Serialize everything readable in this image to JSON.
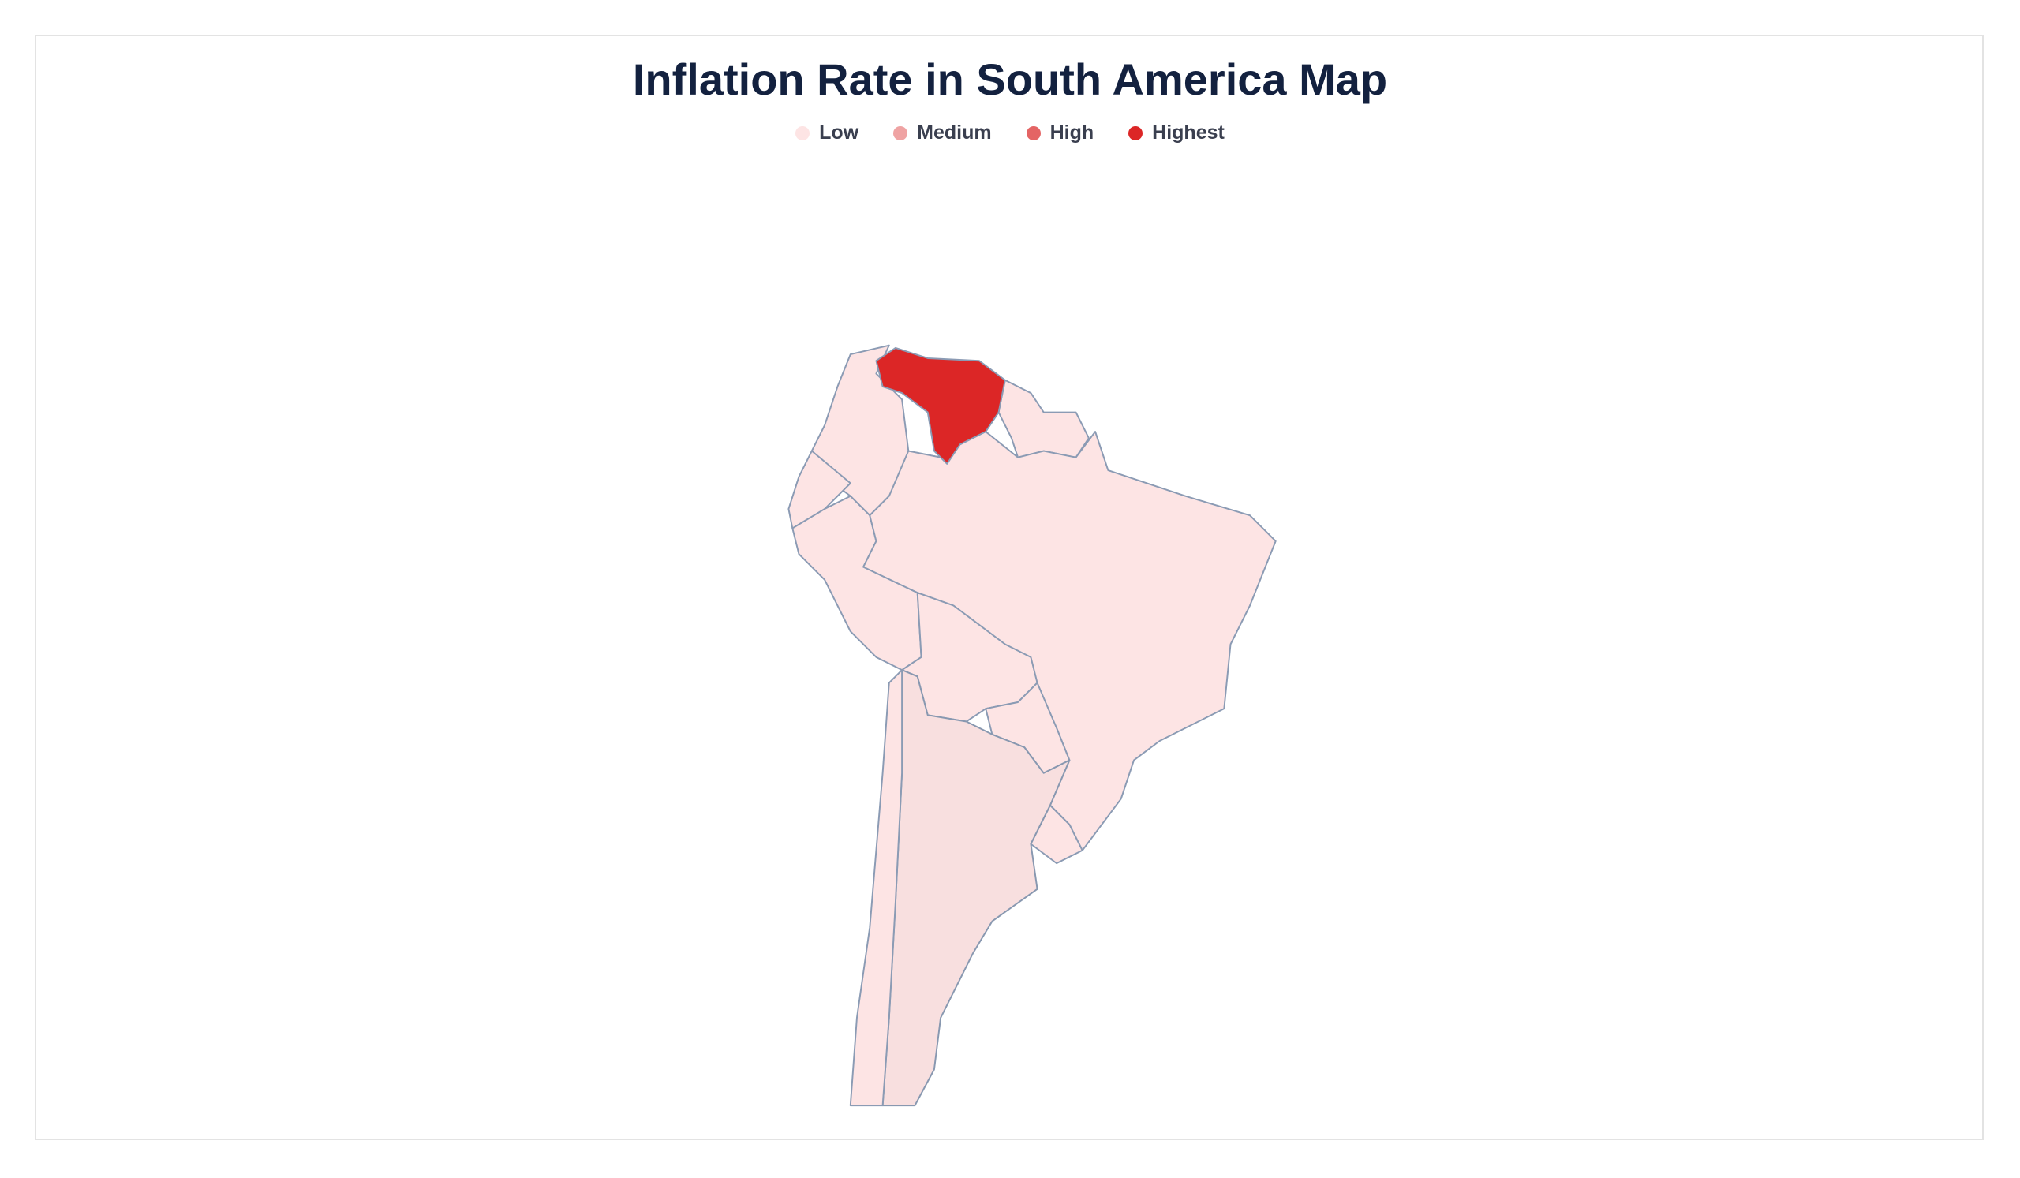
{
  "title": "Inflation Rate in South America Map",
  "legend": [
    {
      "label": "Low",
      "color": "#fde4e4"
    },
    {
      "label": "Medium",
      "color": "#efa3a3"
    },
    {
      "label": "High",
      "color": "#e46464"
    },
    {
      "label": "Highest",
      "color": "#dc2626"
    }
  ]
}
